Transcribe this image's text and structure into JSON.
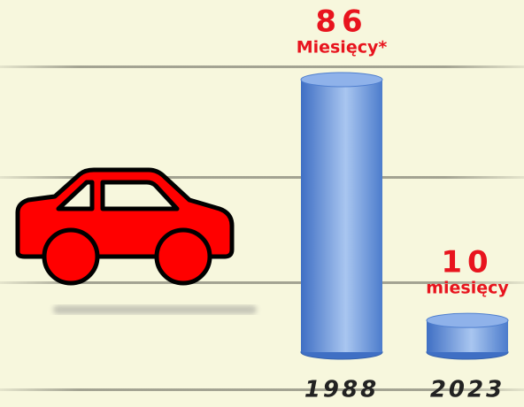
{
  "chart_data": {
    "type": "bar",
    "categories": [
      "1988",
      "2023"
    ],
    "values": [
      86,
      10
    ],
    "unit_labels": [
      "Miesięcy*",
      "miesięcy"
    ],
    "color": "#5a8ad8",
    "label_color": "#e8141e"
  }
}
